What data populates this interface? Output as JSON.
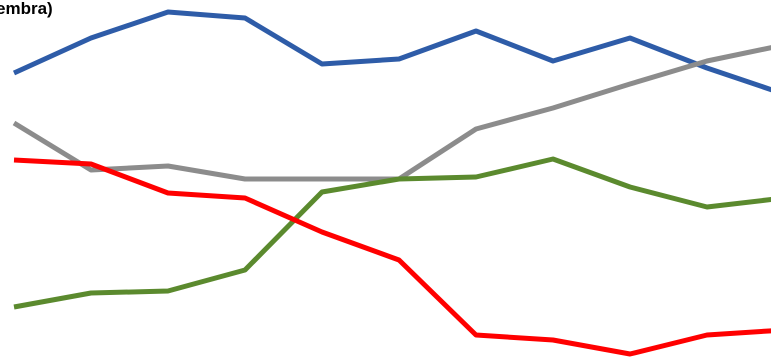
{
  "chart_data": {
    "type": "line",
    "title": "embra)",
    "xlabel": "",
    "ylabel": "",
    "x": [
      0,
      1,
      2,
      3,
      4,
      5,
      6,
      7,
      8,
      9,
      10
    ],
    "ylim": [
      0,
      358
    ],
    "grid": false,
    "series": [
      {
        "color": "#2e5ca8",
        "values": [
          285,
          320,
          346,
          340,
          294,
          299,
          327,
          297,
          320,
          290,
          264
        ]
      },
      {
        "color": "#8c8c8c",
        "values": [
          235,
          188,
          192,
          179,
          179,
          179,
          229,
          250,
          274,
          297,
          313
        ]
      },
      {
        "color": "#5b8a2e",
        "values": [
          51,
          65,
          67,
          88,
          166,
          179,
          181,
          199,
          171,
          151,
          160
        ]
      },
      {
        "color": "#ff0000",
        "values": [
          198,
          194,
          165,
          160,
          126,
          98,
          23,
          18,
          4,
          23,
          28
        ]
      }
    ]
  }
}
